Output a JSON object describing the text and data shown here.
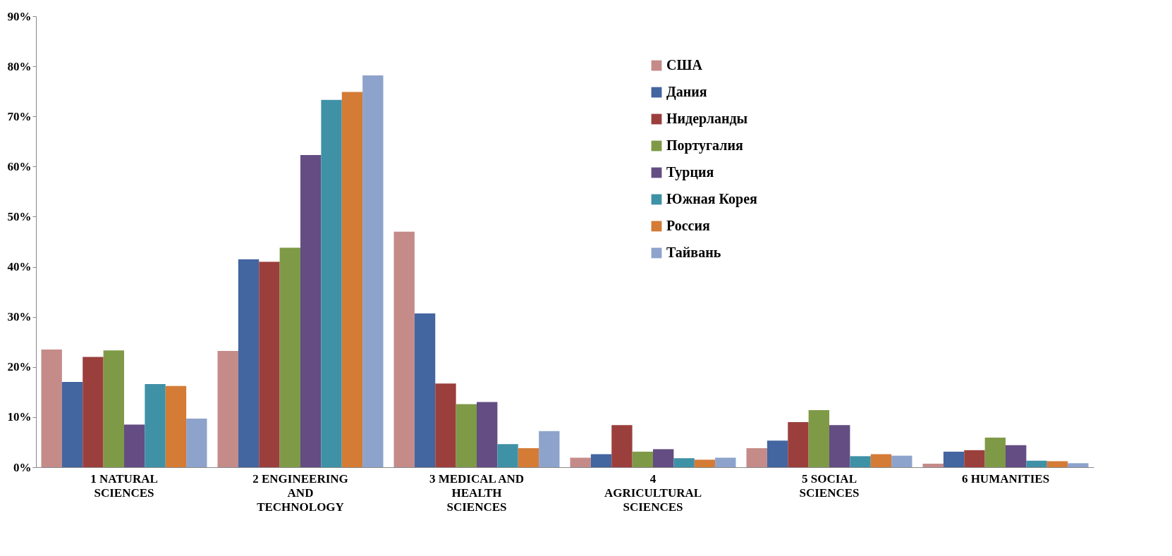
{
  "chart_data": {
    "type": "bar",
    "categories": [
      "1 NATURAL SCIENCES",
      "2 ENGINEERING AND TECHNOLOGY",
      "3 MEDICAL AND HEALTH SCIENCES",
      "4 AGRICULTURAL SCIENCES",
      "5 SOCIAL SCIENCES",
      "6 HUMANITIES"
    ],
    "series": [
      {
        "name": "США",
        "color": "#c58b89",
        "values": [
          23.5,
          23.2,
          47,
          1.9,
          3.8,
          0.7
        ]
      },
      {
        "name": "Дания",
        "color": "#4365a0",
        "values": [
          17,
          41.5,
          30.7,
          2.6,
          5.3,
          3.1
        ]
      },
      {
        "name": "Нидерланды",
        "color": "#9b3f3d",
        "values": [
          22,
          41,
          16.7,
          8.4,
          9,
          3.4
        ]
      },
      {
        "name": "Португалия",
        "color": "#7f9a47",
        "values": [
          23.3,
          43.8,
          12.6,
          3.1,
          11.4,
          5.9
        ]
      },
      {
        "name": "Турция",
        "color": "#634d82",
        "values": [
          8.5,
          62.3,
          13,
          3.6,
          8.4,
          4.4
        ]
      },
      {
        "name": "Южная Корея",
        "color": "#3f91a6",
        "values": [
          16.6,
          73.3,
          4.6,
          1.8,
          2.2,
          1.3
        ]
      },
      {
        "name": "Россия",
        "color": "#d47b36",
        "values": [
          16.2,
          74.9,
          3.8,
          1.5,
          2.6,
          1.2
        ]
      },
      {
        "name": "Тайвань",
        "color": "#8ea3cc",
        "values": [
          9.7,
          78.2,
          7.2,
          1.9,
          2.3,
          0.8
        ]
      }
    ],
    "ylim": [
      0,
      90
    ],
    "yticks": [
      {
        "value": 0,
        "label": "0%"
      },
      {
        "value": 10,
        "label": "10%"
      },
      {
        "value": 20,
        "label": "20%"
      },
      {
        "value": 30,
        "label": "30%"
      },
      {
        "value": 40,
        "label": "40%"
      },
      {
        "value": 50,
        "label": "50%"
      },
      {
        "value": 60,
        "label": "60%"
      },
      {
        "value": 70,
        "label": "70%"
      },
      {
        "value": 80,
        "label": "80%"
      },
      {
        "value": 90,
        "label": "90%"
      }
    ],
    "grid": false,
    "legend": "top right"
  }
}
